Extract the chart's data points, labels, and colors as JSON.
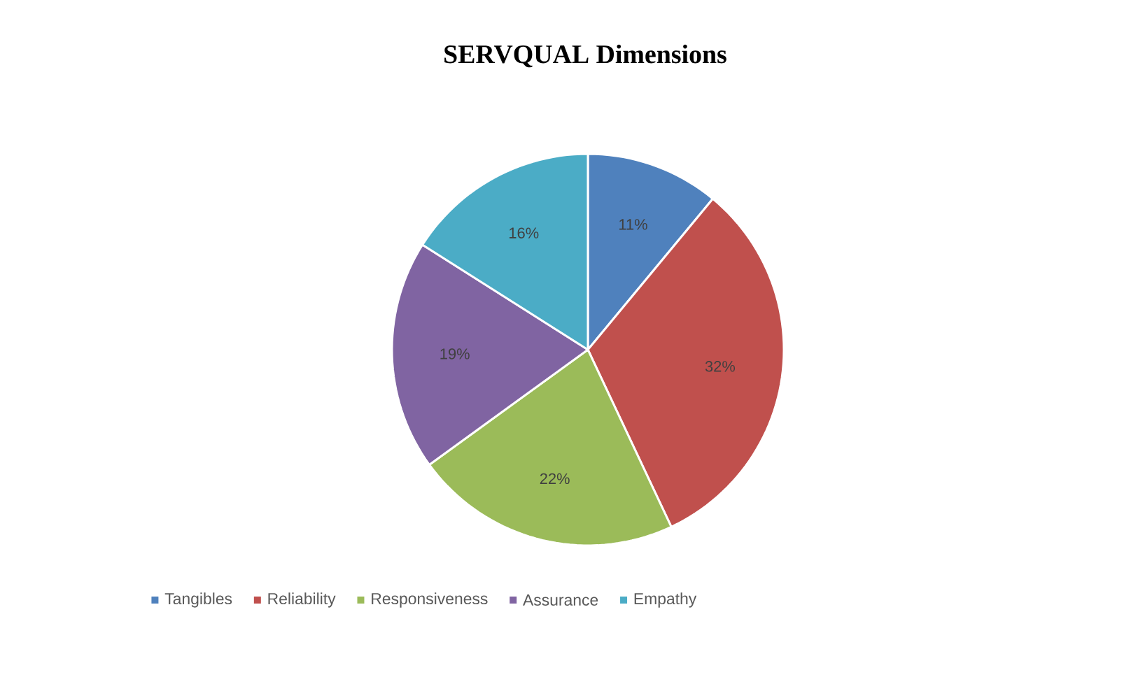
{
  "chart_data": {
    "type": "pie",
    "title": "SERVQUAL Dimensions",
    "categories": [
      "Tangibles",
      "Reliability",
      "Responsiveness",
      "Assurance",
      "Empathy"
    ],
    "values": [
      11,
      32,
      22,
      19,
      16
    ],
    "colors": [
      "#4f81bd",
      "#c0504d",
      "#9bbb59",
      "#8064a2",
      "#4bacc6"
    ],
    "value_labels": [
      "11%",
      "32%",
      "22%",
      "19%",
      "16%"
    ],
    "legend": "bottom"
  }
}
